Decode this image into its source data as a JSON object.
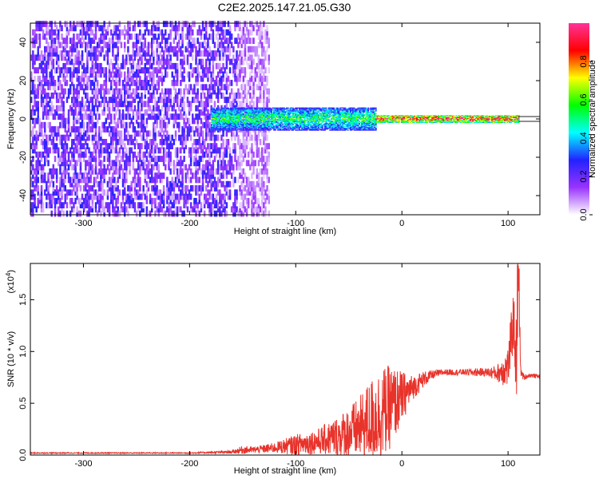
{
  "title": "C2E2.2025.147.21.05.G30",
  "chart_data": [
    {
      "type": "heatmap",
      "xlabel": "Height of straight line (km)",
      "ylabel": "Frequency (Hz)",
      "xlim": [
        -350,
        130
      ],
      "ylim": [
        -50,
        50
      ],
      "xticks": [
        "-300",
        "-200",
        "-100",
        "0",
        "100"
      ],
      "yticks": [
        "-40",
        "-20",
        "0",
        "20",
        "40"
      ],
      "colorbar": {
        "label": "Normalized spectral amplitude",
        "range": [
          0,
          1
        ],
        "ticks": [
          "0.0",
          "0.2",
          "0.4",
          "0.6",
          "0.8"
        ],
        "colors": [
          "#ffffff",
          "#9933ff",
          "#2222ff",
          "#00ffff",
          "#00ff00",
          "#ffff00",
          "#ff0000",
          "#ff3399"
        ]
      },
      "regions": [
        {
          "x": [
            -350,
            -155
          ],
          "freq_spread": [
            -50,
            50
          ],
          "amplitude": 0.15,
          "note": "broadband noise"
        },
        {
          "x": [
            -155,
            -125
          ],
          "freq_spread": [
            -50,
            50
          ],
          "amplitude": 0.08
        },
        {
          "x": [
            -180,
            -25
          ],
          "freq_spread": [
            -6,
            6
          ],
          "amplitude": 0.5
        },
        {
          "x": [
            -25,
            110
          ],
          "freq_spread": [
            -2,
            2
          ],
          "amplitude": 0.8
        }
      ]
    },
    {
      "type": "line",
      "xlabel": "Height of straight line (km)",
      "ylabel": "SNR (10 * v/v)",
      "exponent_label": "(x10",
      "exponent_power": "4",
      "exponent_close": ")",
      "xlim": [
        -350,
        130
      ],
      "ylim": [
        0,
        1.85
      ],
      "xticks": [
        "-300",
        "-200",
        "-100",
        "0",
        "100"
      ],
      "yticks": [
        "0.0",
        "0.5",
        "1.0",
        "1.5"
      ],
      "series": [
        {
          "color": "#e8332b",
          "x": [
            -350,
            -300,
            -250,
            -200,
            -160,
            -150,
            -140,
            -120,
            -100,
            -80,
            -60,
            -40,
            -30,
            -20,
            -10,
            0,
            10,
            20,
            30,
            40,
            50,
            60,
            70,
            80,
            90,
            95,
            100,
            105,
            108,
            110,
            112,
            115,
            120,
            130
          ],
          "y": [
            0.02,
            0.02,
            0.02,
            0.02,
            0.03,
            0.05,
            0.05,
            0.07,
            0.1,
            0.13,
            0.18,
            0.26,
            0.33,
            0.4,
            0.47,
            0.56,
            0.65,
            0.73,
            0.78,
            0.8,
            0.8,
            0.8,
            0.8,
            0.8,
            0.79,
            0.82,
            0.85,
            1.3,
            0.9,
            1.75,
            0.8,
            0.75,
            0.77,
            0.76
          ],
          "noise": [
            0.005,
            0.005,
            0.005,
            0.005,
            0.015,
            0.04,
            0.03,
            0.05,
            0.1,
            0.12,
            0.2,
            0.3,
            0.4,
            0.45,
            0.4,
            0.25,
            0.12,
            0.08,
            0.04,
            0.03,
            0.03,
            0.03,
            0.04,
            0.04,
            0.08,
            0.15,
            0.2,
            0.3,
            0.4,
            0.3,
            0.05,
            0.03,
            0.02,
            0.02
          ]
        }
      ]
    }
  ]
}
